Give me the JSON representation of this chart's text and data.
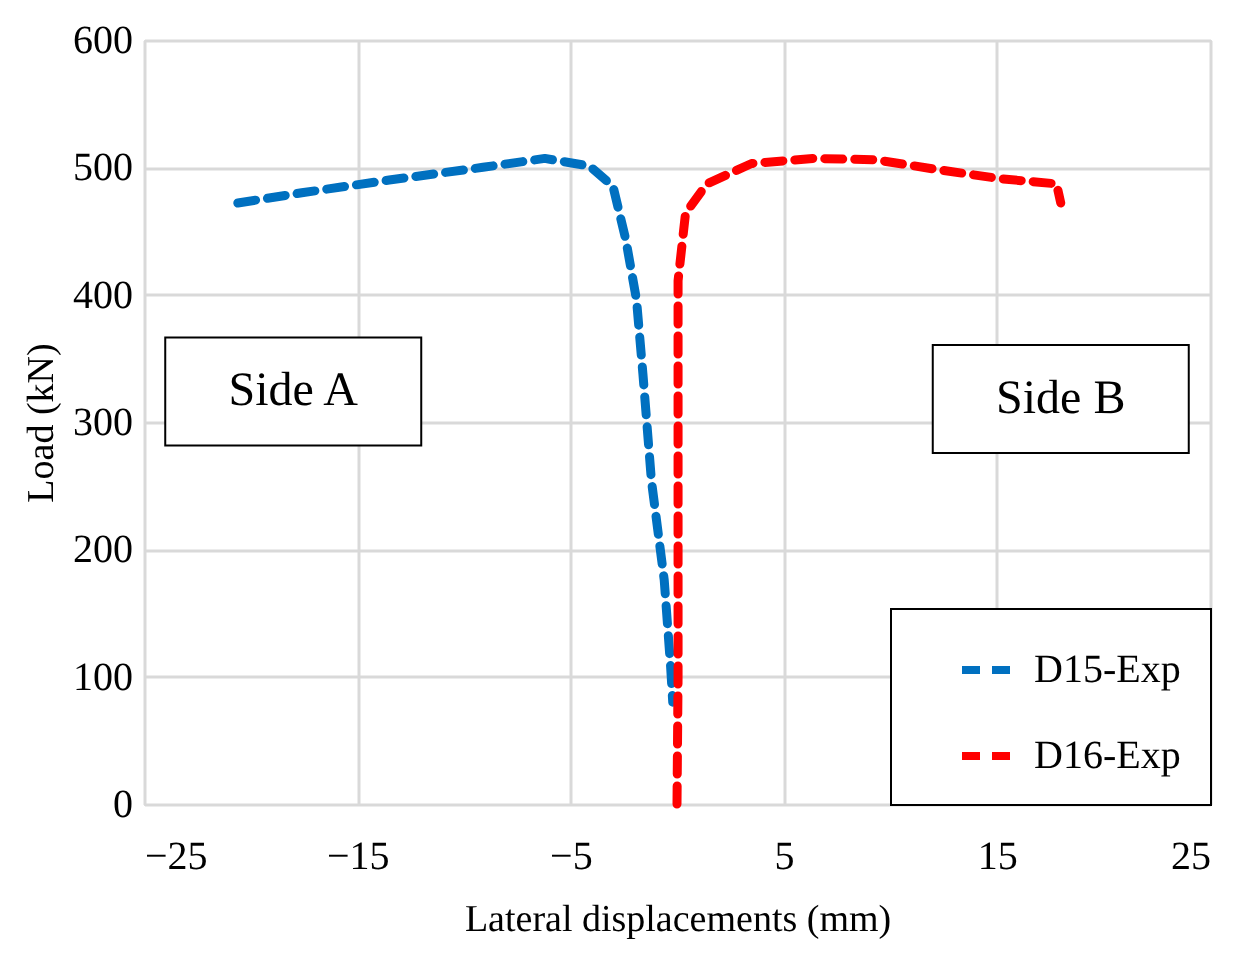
{
  "chart_data": {
    "type": "line",
    "xlabel": "Lateral displacements (mm)",
    "ylabel": "Load (kN)",
    "xlim": [
      -25,
      25
    ],
    "xticks": [
      -25,
      -15,
      -5,
      5,
      15,
      25
    ],
    "ylim": [
      0,
      600
    ],
    "yticks": [
      0,
      100,
      200,
      300,
      400,
      500,
      600
    ],
    "grid": true,
    "legend": "bottom right",
    "line_style": "dashed",
    "marker": "none",
    "annotations": [
      "Side A",
      "Side B"
    ],
    "series": [
      {
        "name": "D15-Exp",
        "color": "#0070c0",
        "x": [
          -20.6,
          -17.6,
          -13.5,
          -9.1,
          -6.2,
          -4.1,
          -3.0,
          -2.4,
          -1.9,
          -1.6,
          -1.2,
          -0.6,
          -0.3,
          -0.2
        ],
        "values": [
          472,
          480,
          490,
          500,
          507,
          501,
          485,
          443,
          396,
          338,
          254,
          176,
          108,
          80
        ]
      },
      {
        "name": "D16-Exp",
        "color": "#ff0000",
        "x": [
          0.0,
          0.05,
          0.05,
          0.05,
          0.4,
          1.4,
          3.5,
          6.4,
          9.3,
          12.3,
          15.2,
          17.8,
          18.0
        ],
        "values": [
          0,
          100,
          300,
          411,
          464,
          487,
          503,
          507,
          506,
          498,
          491,
          487,
          472
        ]
      }
    ]
  }
}
